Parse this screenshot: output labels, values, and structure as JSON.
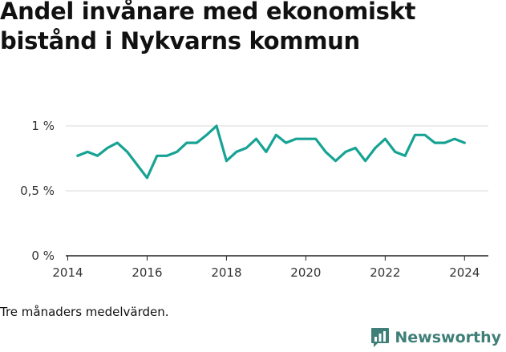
{
  "title": "Andel invånare med ekonomiskt bistånd i Nykvarns kommun",
  "footnote": "Tre månaders medelvärden.",
  "brand": {
    "name": "Newsworthy",
    "logo_icon": "bar-chart-speech-bubble-icon",
    "color": "#3f7f78"
  },
  "chart_data": {
    "type": "line",
    "title": "Andel invånare med ekonomiskt bistånd i Nykvarns kommun",
    "xlabel": "",
    "ylabel": "",
    "x_ticks": [
      "2014",
      "2016",
      "2018",
      "2020",
      "2022",
      "2024"
    ],
    "y_ticks": [
      "0 %",
      "0,5 %",
      "1 %"
    ],
    "xlim": [
      2013.95,
      2024.6
    ],
    "ylim": [
      0,
      1.0
    ],
    "grid": true,
    "line_color": "#16a394",
    "series": [
      {
        "x": [
          2014.25,
          2014.5,
          2014.75,
          2015.0,
          2015.25,
          2015.5,
          2015.75,
          2016.0,
          2016.25,
          2016.5,
          2016.75,
          2017.0,
          2017.25,
          2017.5,
          2017.75,
          2018.0,
          2018.25,
          2018.5,
          2018.75,
          2019.0,
          2019.25,
          2019.5,
          2019.75,
          2020.0,
          2020.25,
          2020.5,
          2020.75,
          2021.0,
          2021.25,
          2021.5,
          2021.75,
          2022.0,
          2022.25,
          2022.5,
          2022.75,
          2023.0,
          2023.25,
          2023.5,
          2023.75,
          2024.0
        ],
        "values": [
          0.77,
          0.8,
          0.77,
          0.83,
          0.87,
          0.8,
          0.7,
          0.6,
          0.77,
          0.77,
          0.8,
          0.87,
          0.87,
          0.93,
          1.0,
          0.73,
          0.8,
          0.83,
          0.9,
          0.8,
          0.93,
          0.87,
          0.9,
          0.9,
          0.9,
          0.8,
          0.73,
          0.8,
          0.83,
          0.73,
          0.83,
          0.9,
          0.8,
          0.77,
          0.93,
          0.93,
          0.87,
          0.87,
          0.9,
          0.87
        ]
      }
    ]
  }
}
